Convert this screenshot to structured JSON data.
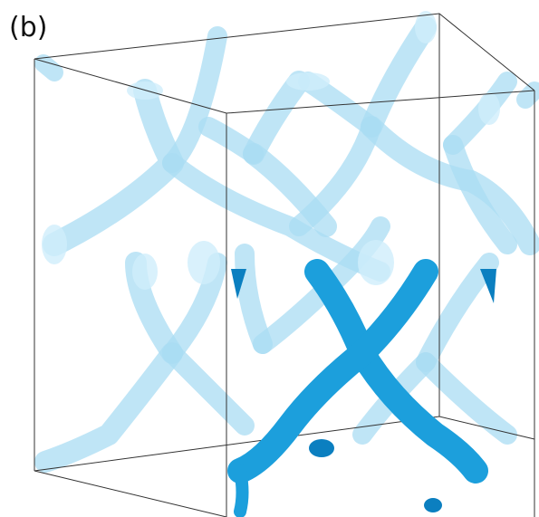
{
  "panel_label": "(b)"
}
